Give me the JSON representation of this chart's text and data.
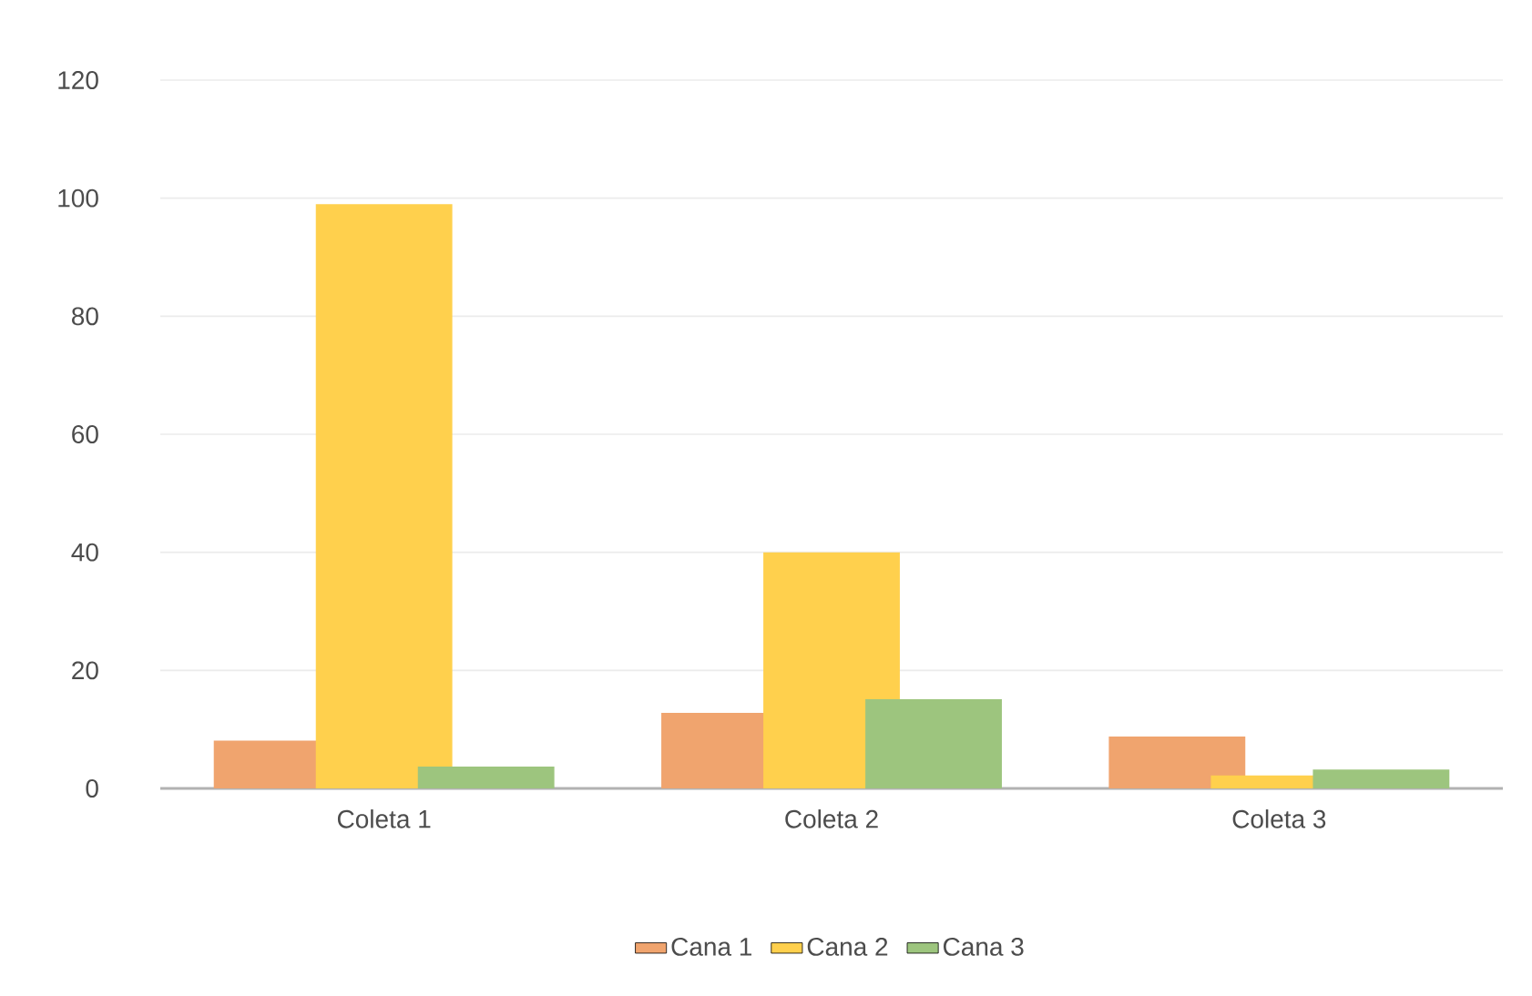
{
  "chart_data": {
    "type": "bar",
    "categories": [
      "Coleta 1",
      "Coleta 2",
      "Coleta 3"
    ],
    "series": [
      {
        "name": "Cana 1",
        "color": "#f0a46e",
        "values": [
          8.1,
          12.8,
          8.8
        ]
      },
      {
        "name": "Cana 2",
        "color": "#ffd04d",
        "values": [
          99,
          40,
          2.2
        ]
      },
      {
        "name": "Cana 3",
        "color": "#9dc57e",
        "values": [
          3.7,
          15.1,
          3.2
        ]
      }
    ],
    "ylim": [
      0,
      120
    ],
    "yticks": [
      0,
      20,
      40,
      60,
      80,
      100,
      120
    ],
    "grid": "y",
    "legend": "bottom"
  }
}
